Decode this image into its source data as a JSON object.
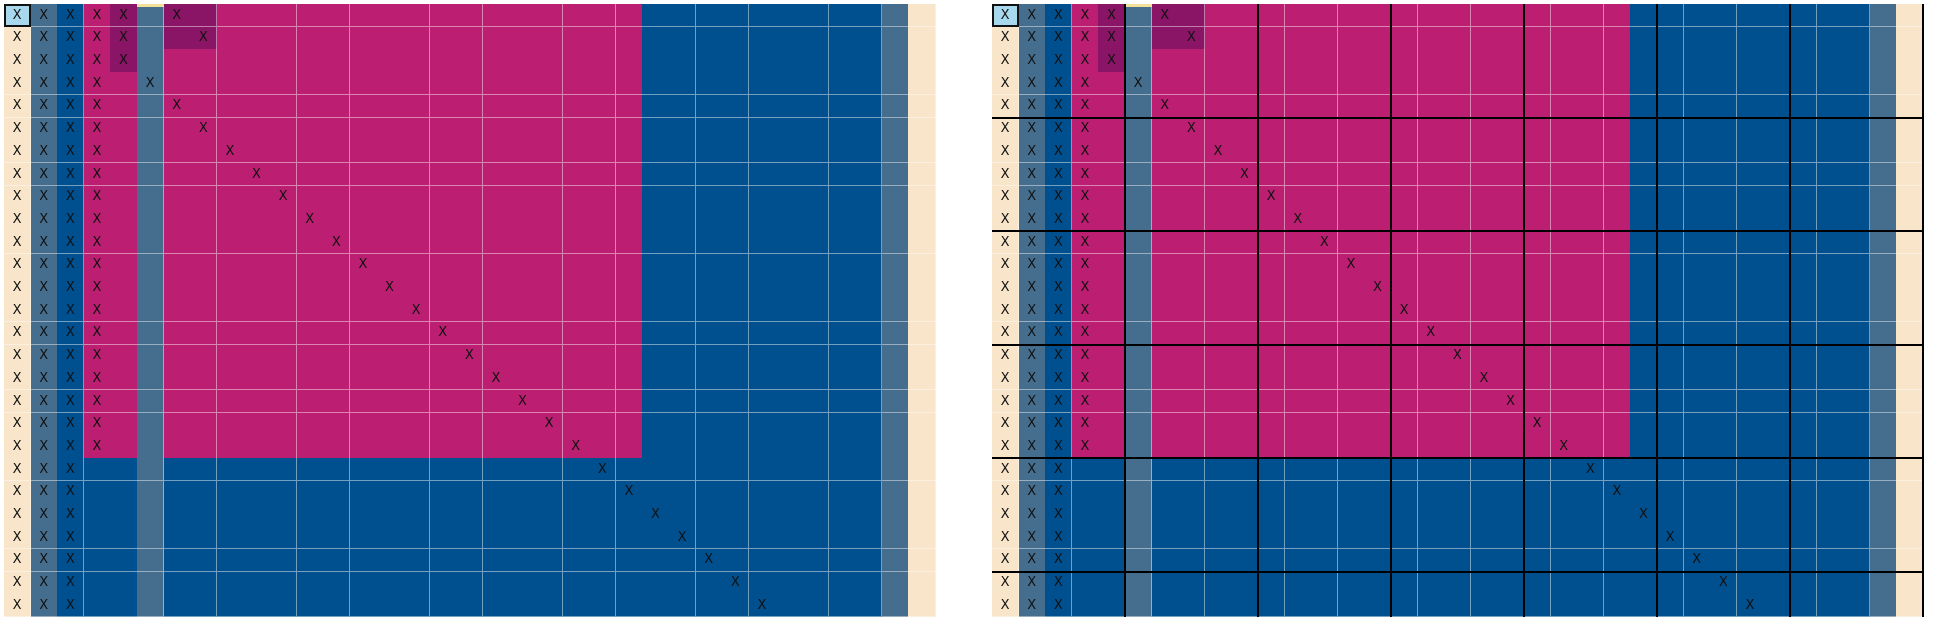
{
  "mark": "X",
  "colors": {
    "beige": "#F9E5C9",
    "gray": "#456E8E",
    "blue": "#00508F",
    "magenta": "#BC1F71",
    "purple": "#8A1466",
    "selected": "#A8D8EE",
    "yellow": "#F2E19A",
    "grid": "#FFFFFF",
    "block_line": "#000000"
  },
  "grid": {
    "rows": 27,
    "cols": 35,
    "magenta_rows": 20,
    "magenta_cols": [
      4,
      23
    ],
    "blue_block_cols": [
      24,
      32
    ],
    "diag_start": {
      "row": 3,
      "col": 5
    },
    "purple_cells": [
      [
        0,
        4
      ],
      [
        1,
        4
      ],
      [
        2,
        4
      ],
      [
        0,
        6
      ],
      [
        0,
        7
      ],
      [
        1,
        6
      ],
      [
        1,
        7
      ]
    ],
    "selected_cell": [
      0,
      0
    ],
    "block_bounds_cols": [
      5,
      10,
      15,
      20,
      25,
      30,
      35
    ],
    "block_bounds_rows": [
      5,
      10,
      15,
      20,
      25
    ]
  },
  "panels": [
    {
      "id": "left",
      "show_blocks": false
    },
    {
      "id": "right",
      "show_blocks": true
    }
  ]
}
